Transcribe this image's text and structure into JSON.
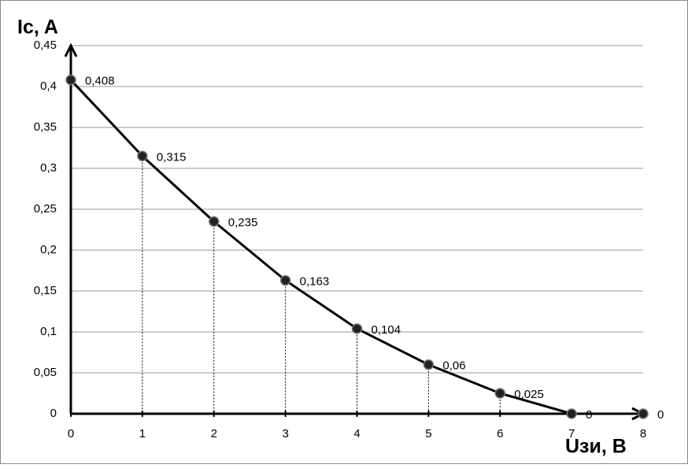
{
  "chart_data": {
    "type": "line",
    "y_label": "Ic, A",
    "x_label": "Uзи, В",
    "x": [
      0,
      1,
      2,
      3,
      4,
      5,
      6,
      7,
      8
    ],
    "series": [
      {
        "color": "#000000",
        "values": [
          0.408,
          0.315,
          0.235,
          0.163,
          0.104,
          0.06,
          0.025,
          0,
          0
        ],
        "value_labels": [
          "0,408",
          "0,315",
          "0,235",
          "0,163",
          "0,104",
          "0,06",
          "0,025",
          "0",
          "0"
        ]
      }
    ],
    "xlim": [
      0,
      8
    ],
    "xticks": [
      0,
      1,
      2,
      3,
      4,
      5,
      6,
      7,
      8
    ],
    "ylim": [
      0,
      0.45
    ],
    "yticks": [
      0,
      {
        "value": 0.05,
        "label": "0,05"
      },
      {
        "value": 0.1,
        "label": "0,1"
      },
      {
        "value": 0.15,
        "label": "0,15"
      },
      {
        "value": 0.2,
        "label": "0,2"
      },
      {
        "value": 0.25,
        "label": "0,25"
      },
      {
        "value": 0.3,
        "label": "0,3"
      },
      {
        "value": 0.35,
        "label": "0,35"
      },
      {
        "value": 0.4,
        "label": "0,4"
      },
      {
        "value": 0.45,
        "label": "0,45"
      }
    ],
    "grid": true
  }
}
